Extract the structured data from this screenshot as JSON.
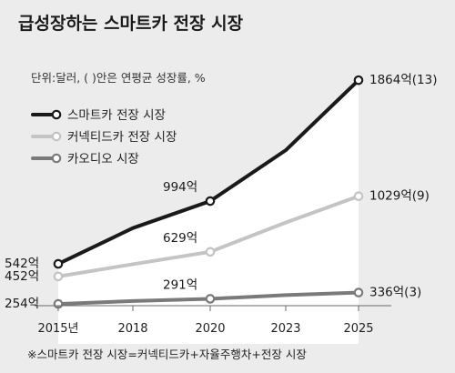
{
  "title": "급성장하는 스마트카 전장 시장",
  "unit_note": "단위:달러, ( )안은 연평균 성장률, %",
  "footnote": "※스마트카 전장 시장=커넥티드카+자율주행차+전장 시장",
  "chart_data": {
    "type": "line",
    "x": [
      2015,
      2018,
      2020,
      2023,
      2025
    ],
    "tick_labels": [
      "2015년",
      "2018",
      "2020",
      "2023",
      "2025"
    ],
    "ylim": [
      150,
      1950
    ],
    "grid": false,
    "legend_position": "top-left",
    "series": [
      {
        "name": "스마트카 전장 시장",
        "color": "#1a1a1a",
        "values": [
          542,
          800,
          994,
          1360,
          1864
        ],
        "labeled_points": [
          {
            "x": 2015,
            "y": 542,
            "label": "542억"
          },
          {
            "x": 2020,
            "y": 994,
            "label": "994억"
          },
          {
            "x": 2025,
            "y": 1864,
            "label": "1864억(13)"
          }
        ]
      },
      {
        "name": "커넥티드카 전장 시장",
        "color": "#c4c4c4",
        "values": [
          452,
          540,
          629,
          840,
          1029
        ],
        "labeled_points": [
          {
            "x": 2015,
            "y": 452,
            "label": "452억"
          },
          {
            "x": 2020,
            "y": 629,
            "label": "629억"
          },
          {
            "x": 2025,
            "y": 1029,
            "label": "1029억(9)"
          }
        ]
      },
      {
        "name": "카오디오 시장",
        "color": "#7a7a7a",
        "values": [
          254,
          275,
          291,
          318,
          336
        ],
        "labeled_points": [
          {
            "x": 2015,
            "y": 254,
            "label": "254억"
          },
          {
            "x": 2020,
            "y": 291,
            "label": "291억"
          },
          {
            "x": 2025,
            "y": 336,
            "label": "336억(3)"
          }
        ]
      }
    ]
  }
}
